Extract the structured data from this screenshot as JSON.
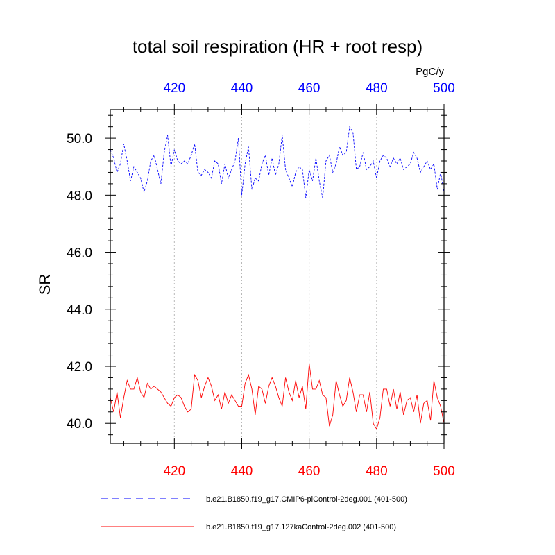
{
  "chart_data": {
    "type": "line",
    "title": "total soil respiration (HR + root resp)",
    "ylabel": "SR",
    "units": "PgC/y",
    "xlim": [
      401,
      500
    ],
    "ylim": [
      39.3,
      51.0
    ],
    "bottom_axis": {
      "ticks": [
        420,
        440,
        460,
        480,
        500
      ],
      "labels": [
        "420",
        "440",
        "460",
        "480",
        "500"
      ],
      "color": "#ff0000"
    },
    "top_axis": {
      "ticks": [
        420,
        440,
        460,
        480,
        500
      ],
      "labels": [
        "420",
        "440",
        "460",
        "480",
        "500"
      ],
      "color": "#0000ff"
    },
    "y_axis": {
      "ticks": [
        40,
        42,
        44,
        46,
        48,
        50
      ],
      "labels": [
        "40.0",
        "42.0",
        "44.0",
        "46.0",
        "48.0",
        "50.0"
      ]
    },
    "grid": "vertical dotted at major x ticks",
    "legend_position": "bottom",
    "series": [
      {
        "name": "b.e21.B1850.f19_g17.CMIP6-piControl-2deg.001 (401-500)",
        "color": "#0000ff",
        "style": "dashed",
        "x": [
          401,
          402,
          403,
          404,
          405,
          406,
          407,
          408,
          409,
          410,
          411,
          412,
          413,
          414,
          415,
          416,
          417,
          418,
          419,
          420,
          421,
          422,
          423,
          424,
          425,
          426,
          427,
          428,
          429,
          430,
          431,
          432,
          433,
          434,
          435,
          436,
          437,
          438,
          439,
          440,
          441,
          442,
          443,
          444,
          445,
          446,
          447,
          448,
          449,
          450,
          451,
          452,
          453,
          454,
          455,
          456,
          457,
          458,
          459,
          460,
          461,
          462,
          463,
          464,
          465,
          466,
          467,
          468,
          469,
          470,
          471,
          472,
          473,
          474,
          475,
          476,
          477,
          478,
          479,
          480,
          481,
          482,
          483,
          484,
          485,
          486,
          487,
          488,
          489,
          490,
          491,
          492,
          493,
          494,
          495,
          496,
          497,
          498,
          499,
          500
        ],
        "values": [
          49.6,
          49.3,
          48.8,
          49.1,
          49.8,
          49.2,
          48.5,
          49.0,
          48.8,
          48.6,
          48.1,
          48.5,
          49.2,
          49.4,
          48.9,
          48.4,
          49.5,
          50.1,
          49.0,
          49.6,
          49.2,
          49.1,
          49.2,
          49.1,
          49.4,
          49.8,
          48.8,
          48.7,
          48.9,
          48.8,
          48.6,
          49.2,
          49.1,
          48.4,
          49.1,
          48.6,
          48.9,
          49.2,
          50.0,
          48.0,
          49.1,
          49.7,
          48.2,
          48.6,
          48.5,
          49.1,
          49.4,
          48.7,
          49.3,
          48.7,
          49.1,
          50.1,
          48.9,
          48.6,
          48.3,
          48.8,
          49.0,
          48.9,
          47.9,
          48.9,
          48.5,
          49.3,
          48.5,
          47.9,
          49.2,
          49.4,
          48.8,
          49.1,
          49.7,
          49.4,
          49.5,
          50.4,
          50.2,
          48.9,
          49.0,
          49.5,
          48.9,
          49.0,
          49.2,
          48.6,
          49.2,
          49.4,
          49.3,
          49.0,
          49.3,
          49.1,
          49.3,
          48.9,
          49.0,
          49.1,
          49.5,
          49.3,
          48.8,
          49.0,
          49.2,
          48.9,
          49.1,
          48.2,
          48.8,
          48.1
        ]
      },
      {
        "name": "b.e21.B1850.f19_g17.127kaControl-2deg.002 (401-500)",
        "color": "#ff0000",
        "style": "solid",
        "x": [
          401,
          402,
          403,
          404,
          405,
          406,
          407,
          408,
          409,
          410,
          411,
          412,
          413,
          414,
          415,
          416,
          417,
          418,
          419,
          420,
          421,
          422,
          423,
          424,
          425,
          426,
          427,
          428,
          429,
          430,
          431,
          432,
          433,
          434,
          435,
          436,
          437,
          438,
          439,
          440,
          441,
          442,
          443,
          444,
          445,
          446,
          447,
          448,
          449,
          450,
          451,
          452,
          453,
          454,
          455,
          456,
          457,
          458,
          459,
          460,
          461,
          462,
          463,
          464,
          465,
          466,
          467,
          468,
          469,
          470,
          471,
          472,
          473,
          474,
          475,
          476,
          477,
          478,
          479,
          480,
          481,
          482,
          483,
          484,
          485,
          486,
          487,
          488,
          489,
          490,
          491,
          492,
          493,
          494,
          495,
          496,
          497,
          498,
          499,
          500
        ],
        "values": [
          40.9,
          40.4,
          41.1,
          40.2,
          40.9,
          41.5,
          41.2,
          41.2,
          41.6,
          41.1,
          40.9,
          41.4,
          41.2,
          41.3,
          41.2,
          41.1,
          40.9,
          40.7,
          40.6,
          40.9,
          41.0,
          40.9,
          40.6,
          40.4,
          40.5,
          41.7,
          41.5,
          40.9,
          41.3,
          41.6,
          41.3,
          40.8,
          41.0,
          40.5,
          41.1,
          40.7,
          41.0,
          40.8,
          40.6,
          40.6,
          41.4,
          41.7,
          41.2,
          40.3,
          41.3,
          41.2,
          40.7,
          41.3,
          41.6,
          41.3,
          40.9,
          40.6,
          41.6,
          41.1,
          40.8,
          41.5,
          40.9,
          41.3,
          40.5,
          42.1,
          41.2,
          41.2,
          41.5,
          41.0,
          40.9,
          39.9,
          40.3,
          41.5,
          41.0,
          40.6,
          40.8,
          41.6,
          41.1,
          40.4,
          41.0,
          41.0,
          40.4,
          41.1,
          40.0,
          39.8,
          40.2,
          41.2,
          41.2,
          40.6,
          41.2,
          40.5,
          41.1,
          40.3,
          40.8,
          40.9,
          40.4,
          41.0,
          40.0,
          40.7,
          40.8,
          40.1,
          41.5,
          40.9,
          40.6,
          40.0
        ]
      }
    ]
  }
}
